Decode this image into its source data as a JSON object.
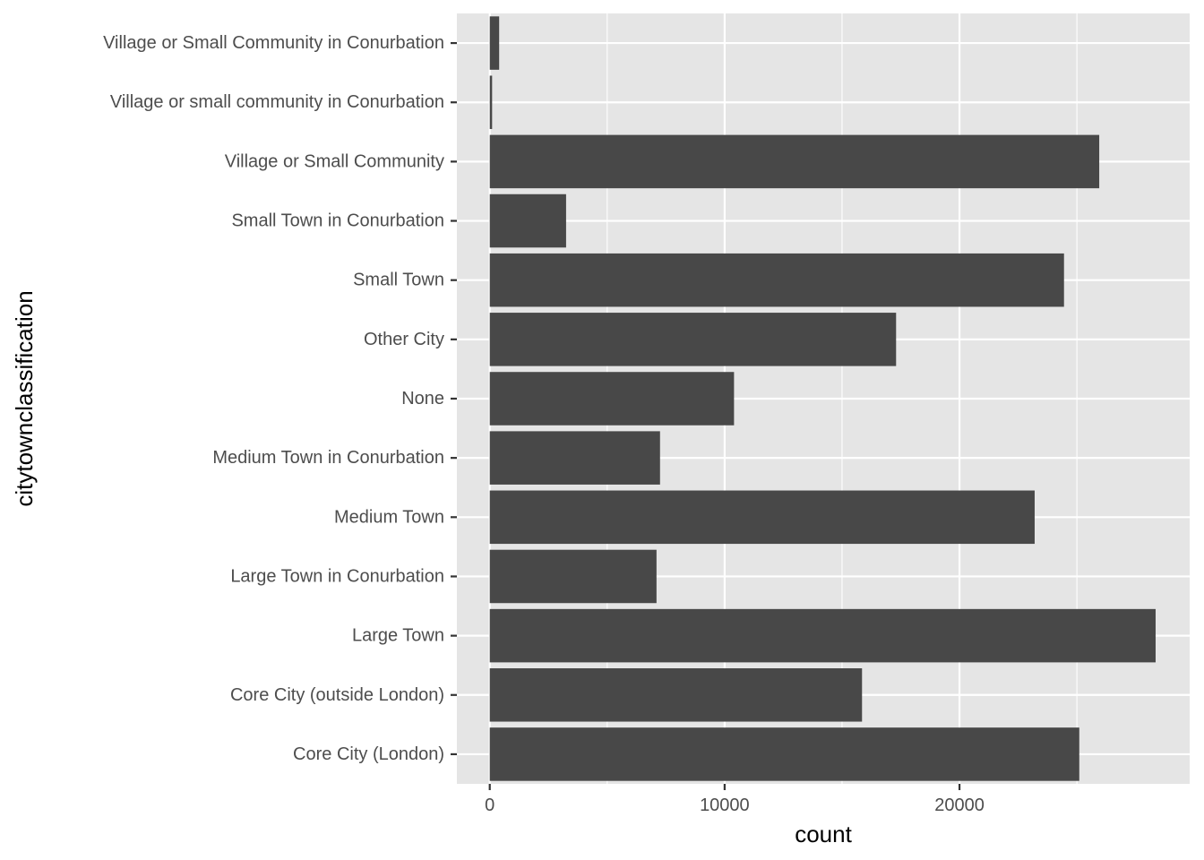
{
  "chart_data": {
    "type": "bar",
    "orientation": "horizontal",
    "xlabel": "count",
    "ylabel": "citytownclassification",
    "categories": [
      "Core City (London)",
      "Core City (outside London)",
      "Large Town",
      "Large Town in Conurbation",
      "Medium Town",
      "Medium Town in Conurbation",
      "None",
      "Other City",
      "Small Town",
      "Small Town in Conurbation",
      "Village or Small Community",
      "Village or small community in Conurbation",
      "Village or Small Community in Conurbation"
    ],
    "values": [
      25100,
      15850,
      28350,
      7100,
      23200,
      7250,
      10400,
      17300,
      24450,
      3250,
      25950,
      100,
      400
    ],
    "xlim": [
      -1400,
      29800
    ],
    "xticks": [
      0,
      10000,
      20000
    ],
    "xtick_labels": [
      "0",
      "10000",
      "20000"
    ],
    "x_minor_gridlines": [
      5000,
      15000,
      25000
    ],
    "grid": true,
    "legend": "none",
    "colors": {
      "bar": "#484848",
      "panel_background": "#e5e5e5",
      "gridline": "#ffffff",
      "tick_label": "#4d4d4d",
      "axis_title": "#000000"
    }
  }
}
